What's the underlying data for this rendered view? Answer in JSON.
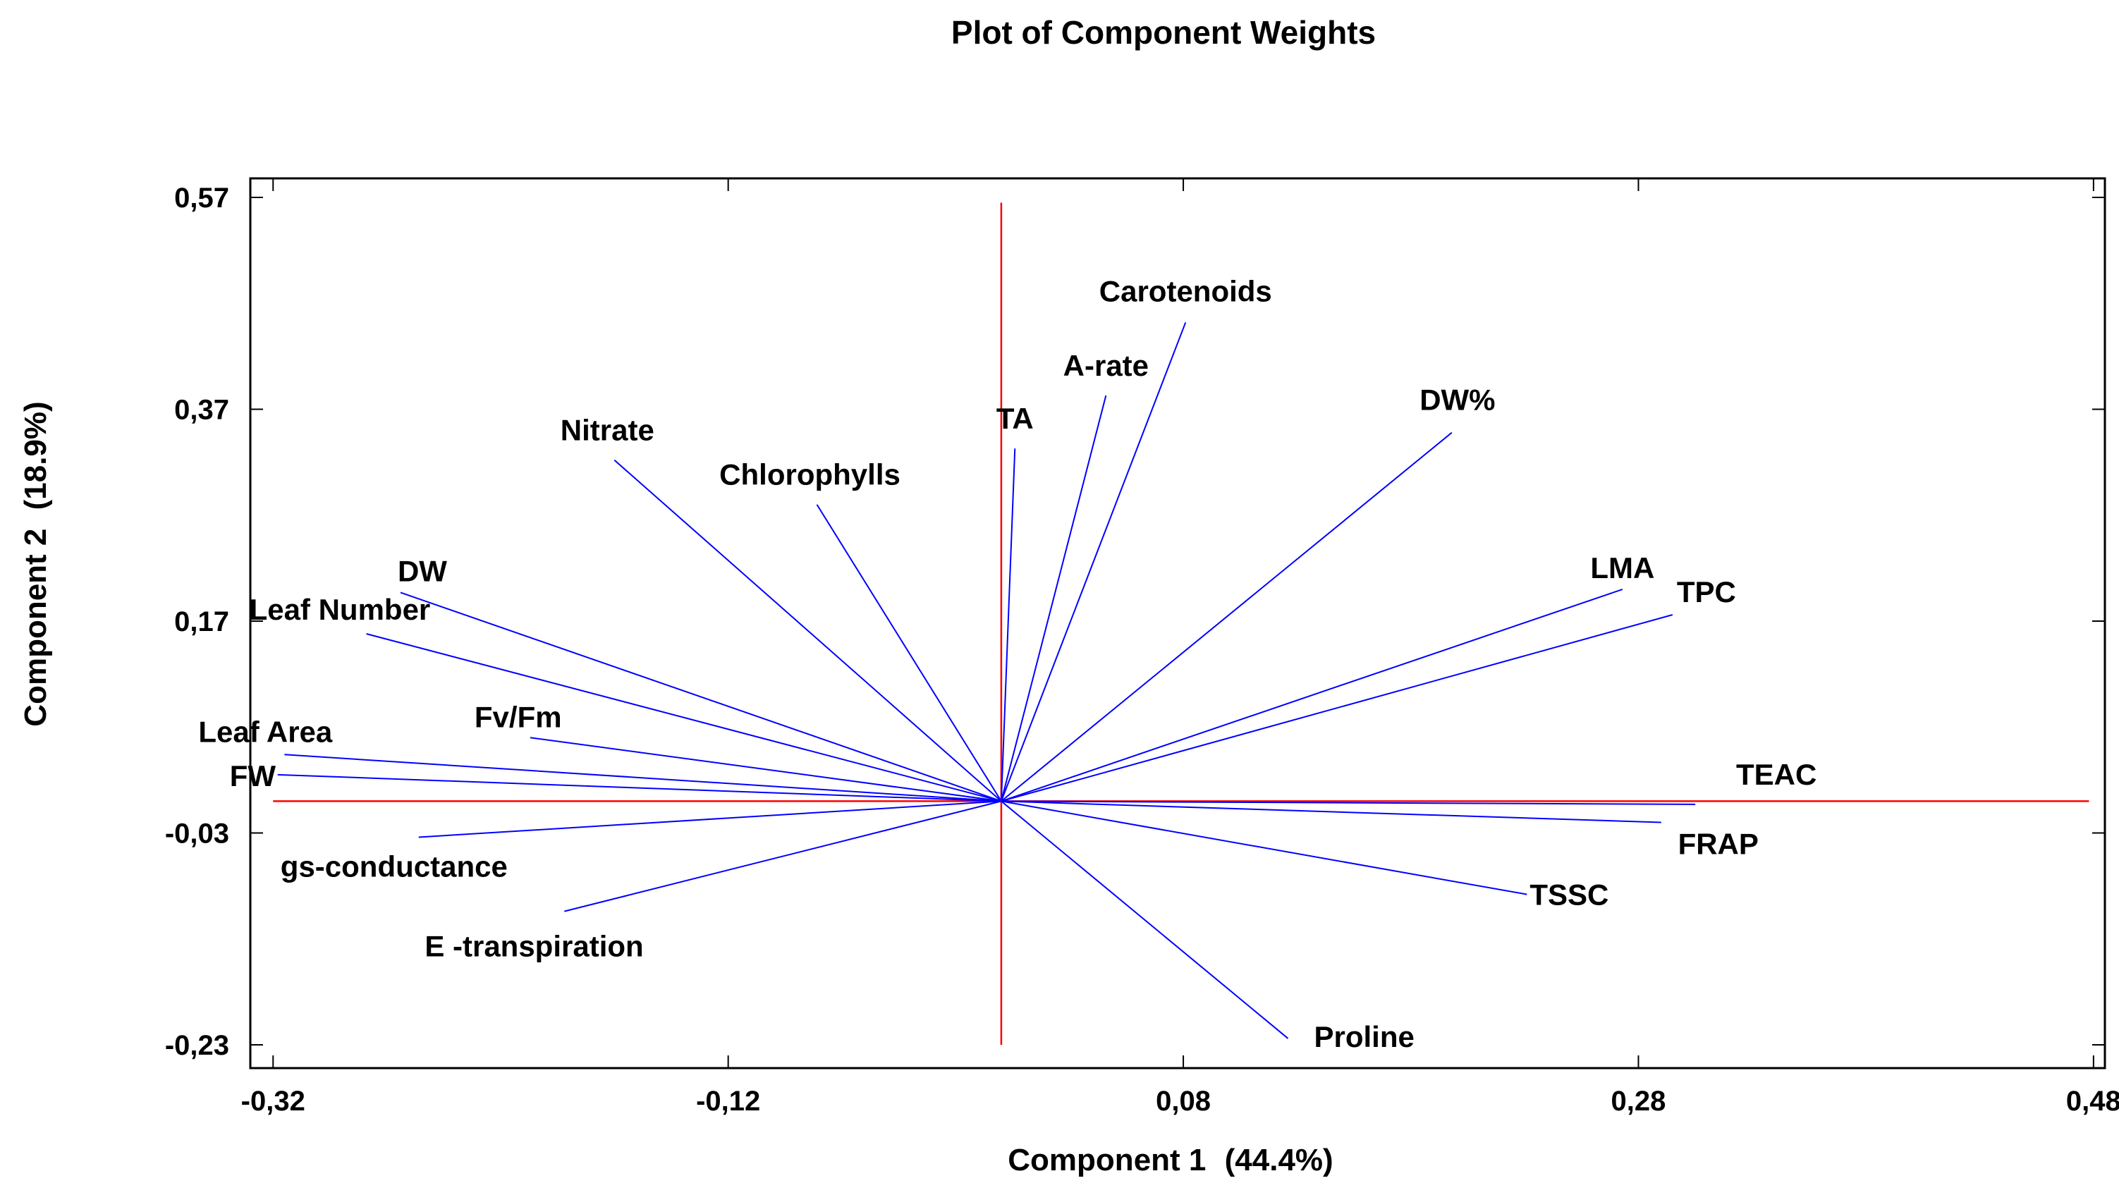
{
  "chart_data": {
    "type": "scatter",
    "subtype": "loading-vectors",
    "title": "Plot of Component Weights",
    "xlabel": "Component 1",
    "xlabel_pct": "(44.4%)",
    "ylabel": "Component 2",
    "ylabel_pct": "(18.9%)",
    "xlim": [
      -0.33,
      0.485
    ],
    "ylim": [
      -0.252,
      0.588
    ],
    "x_ticks": [
      {
        "value": -0.32,
        "label": "-0,32"
      },
      {
        "value": -0.12,
        "label": "-0,12"
      },
      {
        "value": 0.08,
        "label": "0,08"
      },
      {
        "value": 0.28,
        "label": "0,28"
      },
      {
        "value": 0.48,
        "label": "0,48"
      }
    ],
    "y_ticks": [
      {
        "value": 0.57,
        "label": "0,57"
      },
      {
        "value": 0.37,
        "label": "0,37"
      },
      {
        "value": 0.17,
        "label": "0,17"
      },
      {
        "value": -0.03,
        "label": "-0,03"
      },
      {
        "value": -0.23,
        "label": "-0,23"
      }
    ],
    "axis_line_color": "#ff0000",
    "vector_color": "#0000ff",
    "origin": [
      0.0,
      0.0
    ],
    "reference_lines": {
      "horizontal": {
        "from": -0.32,
        "to": 0.478
      },
      "vertical": {
        "from": -0.23,
        "to": 0.565
      }
    },
    "variables": [
      {
        "name": "Carotenoids",
        "x": 0.081,
        "y": 0.452
      },
      {
        "name": "A-rate",
        "x": 0.046,
        "y": 0.383
      },
      {
        "name": "TA",
        "x": 0.006,
        "y": 0.333
      },
      {
        "name": "DW%",
        "x": 0.198,
        "y": 0.348
      },
      {
        "name": "Nitrate",
        "x": -0.17,
        "y": 0.322
      },
      {
        "name": "Chlorophylls",
        "x": -0.081,
        "y": 0.28
      },
      {
        "name": "LMA",
        "x": 0.273,
        "y": 0.2
      },
      {
        "name": "TPC",
        "x": 0.295,
        "y": 0.176
      },
      {
        "name": "DW",
        "x": -0.264,
        "y": 0.197
      },
      {
        "name": "Leaf Number",
        "x": -0.279,
        "y": 0.158
      },
      {
        "name": "Fv/Fm",
        "x": -0.207,
        "y": 0.06
      },
      {
        "name": "Leaf Area",
        "x": -0.315,
        "y": 0.044
      },
      {
        "name": "FW",
        "x": -0.318,
        "y": 0.025
      },
      {
        "name": "TEAC",
        "x": 0.305,
        "y": -0.003
      },
      {
        "name": "FRAP",
        "x": 0.29,
        "y": -0.02
      },
      {
        "name": "TSSC",
        "x": 0.231,
        "y": -0.088
      },
      {
        "name": "gs-conductance",
        "x": -0.256,
        "y": -0.034
      },
      {
        "name": "E -transpiration",
        "x": -0.192,
        "y": -0.104
      },
      {
        "name": "Proline",
        "x": 0.126,
        "y": -0.224
      }
    ]
  }
}
